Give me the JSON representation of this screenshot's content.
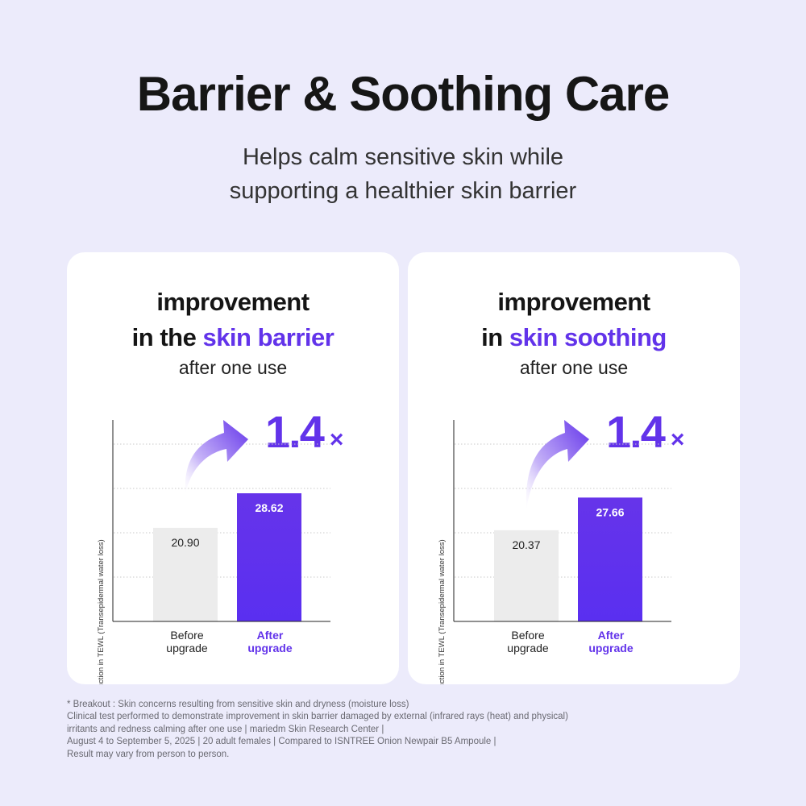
{
  "header": {
    "title": "Barrier & Soothing Care",
    "subtitle_line1": "Helps calm sensitive skin while",
    "subtitle_line2": "supporting a healthier skin barrier"
  },
  "cards": [
    {
      "heading_line1": "improvement",
      "heading_line2_prefix": "in the ",
      "heading_line2_accent": "skin barrier",
      "heading_line3": "after one use",
      "multiplier": "1.4",
      "multiplier_sign": "×",
      "ylabel": "Reduction in TEWL (Transepidermal water loss)",
      "before_line1": "Before",
      "before_line2": "upgrade",
      "after_line1": "After",
      "after_line2": "upgrade"
    },
    {
      "heading_line1": "improvement",
      "heading_line2_prefix": "in ",
      "heading_line2_accent": "skin soothing",
      "heading_line3": "after one use",
      "multiplier": "1.4",
      "multiplier_sign": "×",
      "ylabel": "Reduction in TEWL (Transepidermal water loss)",
      "before_line1": "Before",
      "before_line2": "upgrade",
      "after_line1": "After",
      "after_line2": "upgrade"
    }
  ],
  "chart_data": [
    {
      "type": "bar",
      "title": "improvement in the skin barrier after one use",
      "ylabel": "Reduction in TEWL (Transepidermal water loss)",
      "categories": [
        "Before upgrade",
        "After upgrade"
      ],
      "values": [
        20.9,
        28.62
      ],
      "value_labels": [
        "20.90",
        "28.62"
      ],
      "annotation": "1.4 ×",
      "ylim": [
        0,
        45
      ],
      "grid": true,
      "colors": [
        "#ececec",
        "#6233ea"
      ]
    },
    {
      "type": "bar",
      "title": "improvement in skin soothing after one use",
      "ylabel": "Reduction in TEWL (Transepidermal water loss)",
      "categories": [
        "Before upgrade",
        "After upgrade"
      ],
      "values": [
        20.37,
        27.66
      ],
      "value_labels": [
        "20.37",
        "27.66"
      ],
      "annotation": "1.4 ×",
      "ylim": [
        0,
        45
      ],
      "grid": true,
      "colors": [
        "#ececec",
        "#6233ea"
      ]
    }
  ],
  "footnote": {
    "line1": "* Breakout : Skin concerns resulting from sensitive skin and dryness (moisture loss)",
    "line2": "Clinical test performed to demonstrate improvement in skin barrier damaged by external (infrared rays (heat) and physical)",
    "line3": "irritants and redness calming after one use | mariedm Skin Research Center |",
    "line4": "August 4 to September 5, 2025 | 20 adult females | Compared to ISNTREE Onion Newpair B5 Ampoule |",
    "line5": "Result may vary from person to person."
  }
}
